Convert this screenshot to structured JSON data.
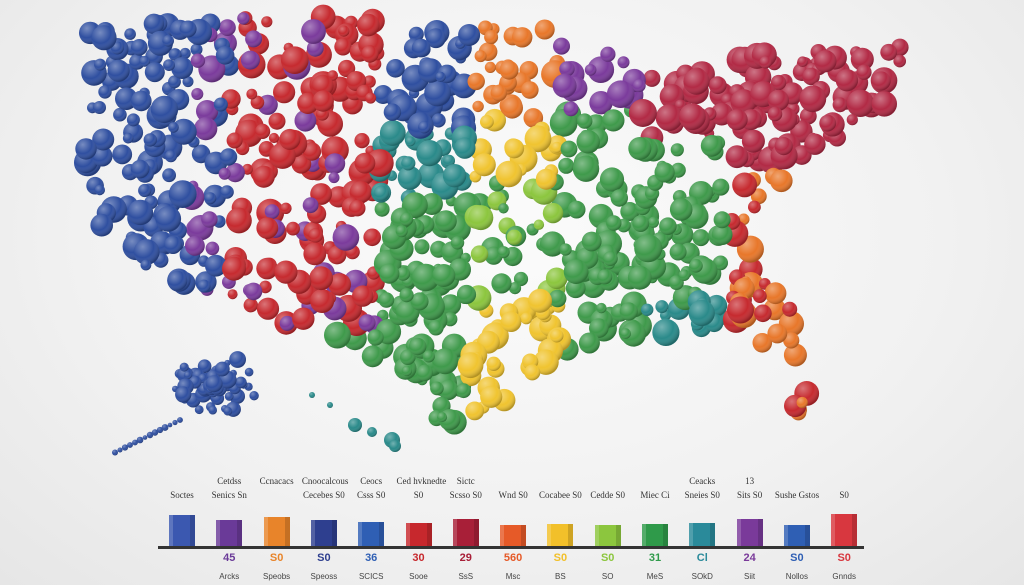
{
  "palette": {
    "blue": "#2f4fa0",
    "purple": "#7b3b9c",
    "red": "#c62a2f",
    "orange": "#e8772a",
    "yellow": "#f0c430",
    "green": "#3f9a4b",
    "teal": "#2a8a8a",
    "crimson": "#b22a45"
  },
  "legend": {
    "columns": [
      {
        "top": "",
        "mid": "Soctes",
        "value": "",
        "foot": "",
        "color": "#3b58b0",
        "height": 0.7
      },
      {
        "top": "Cetdss",
        "mid": "Senics Sn",
        "value": "45",
        "foot": "Arcks",
        "color": "#6a3a98",
        "height": 0.6
      },
      {
        "top": "Ccnacacs",
        "mid": "",
        "value": "S0",
        "foot": "Speobs",
        "color": "#e8842a",
        "height": 0.65
      },
      {
        "top": "Cnoocalcous",
        "mid": "Cecebes S0",
        "value": "S0",
        "foot": "Speoss",
        "color": "#2e3f8f",
        "height": 0.58
      },
      {
        "top": "Ceocs",
        "mid": "Csss S0",
        "value": "36",
        "foot": "SCICS",
        "color": "#2f5fb4",
        "height": 0.55
      },
      {
        "top": "Ced hvknedte",
        "mid": "S0",
        "value": "30",
        "foot": "Sooe",
        "color": "#c7282d",
        "height": 0.52
      },
      {
        "top": "Sictc",
        "mid": "Scsso S0",
        "value": "29",
        "foot": "SsS",
        "color": "#a81f38",
        "height": 0.62
      },
      {
        "top": "",
        "mid": "Wnd S0",
        "value": "560",
        "foot": "Msc",
        "color": "#e65a28",
        "height": 0.48
      },
      {
        "top": "",
        "mid": "Cocabee S0",
        "value": "S0",
        "foot": "BS",
        "color": "#f2c02a",
        "height": 0.5
      },
      {
        "top": "",
        "mid": "Cedde S0",
        "value": "S0",
        "foot": "SO",
        "color": "#8cc63e",
        "height": 0.48
      },
      {
        "top": "",
        "mid": "Miec Ci",
        "value": "31",
        "foot": "MeS",
        "color": "#2f9a4a",
        "height": 0.5
      },
      {
        "top": "Ceacks",
        "mid": "Sneies S0",
        "value": "Cl",
        "foot": "SOkD",
        "color": "#2a8a9a",
        "height": 0.52
      },
      {
        "top": "13",
        "mid": "Sits S0",
        "value": "24",
        "foot": "Siit",
        "color": "#7a3a9a",
        "height": 0.62
      },
      {
        "top": "",
        "mid": "Sushe Gstos",
        "value": "S0",
        "foot": "Nollos",
        "color": "#2f5fb4",
        "height": 0.48
      },
      {
        "top": "",
        "mid": "S0",
        "value": "S0",
        "foot": "Gnnds",
        "color": "#d8373f",
        "height": 0.72
      }
    ]
  }
}
